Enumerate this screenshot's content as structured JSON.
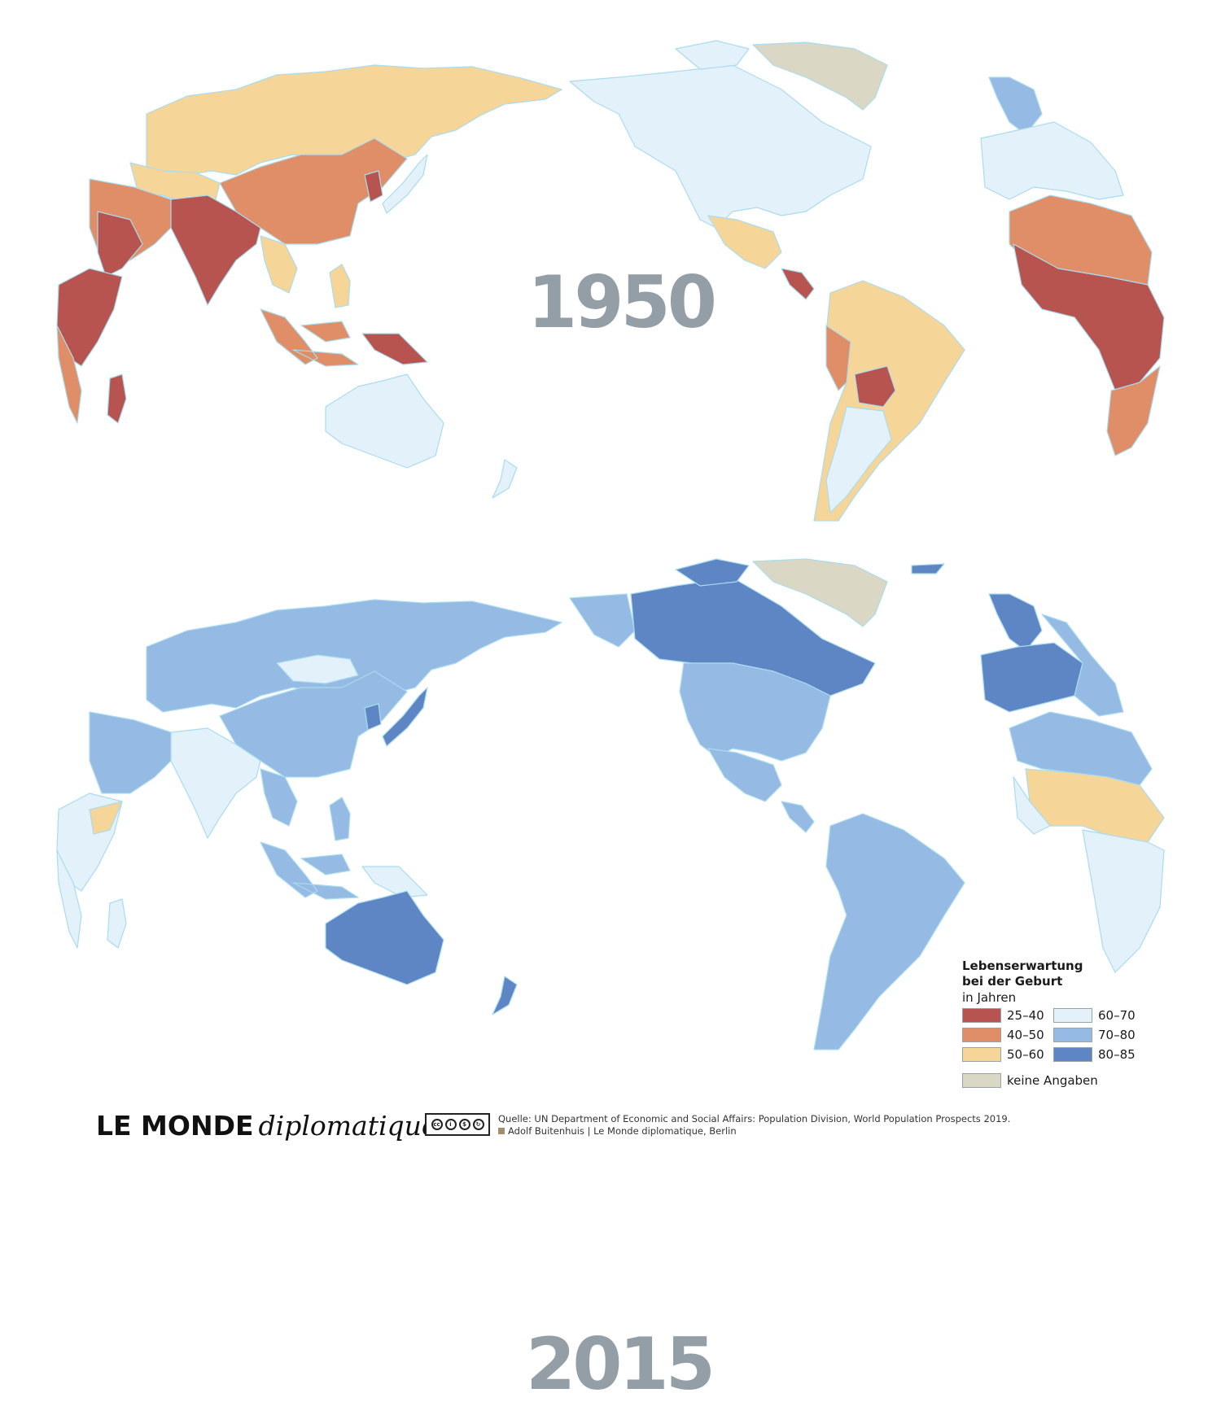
{
  "maps": {
    "top": {
      "year": "1950"
    },
    "bottom": {
      "year": "2015"
    }
  },
  "legend": {
    "title_line1": "Lebenserwartung",
    "title_line2": "bei der Geburt",
    "subtitle": "in Jahren",
    "items": [
      {
        "label": "25–40",
        "color": "#b85450"
      },
      {
        "label": "40–50",
        "color": "#e08e68"
      },
      {
        "label": "50–60",
        "color": "#f6d698"
      },
      {
        "label": "60–70",
        "color": "#e3f1fb"
      },
      {
        "label": "70–80",
        "color": "#95bae3"
      },
      {
        "label": "80–85",
        "color": "#5e85c4"
      },
      {
        "label": "keine Angaben",
        "color": "#dad8c4"
      }
    ]
  },
  "footer": {
    "brand_bold": "LE MONDE",
    "brand_italic": "diplomatique",
    "source": "Quelle: UN Department of Economic and Social Affairs: Population Division, World Population Prospects 2019.",
    "credit": "Adolf Buitenhuis | Le Monde diplomatique, Berlin"
  },
  "colors": {
    "border": "#a9dcee",
    "year_label": "#939ea6"
  }
}
